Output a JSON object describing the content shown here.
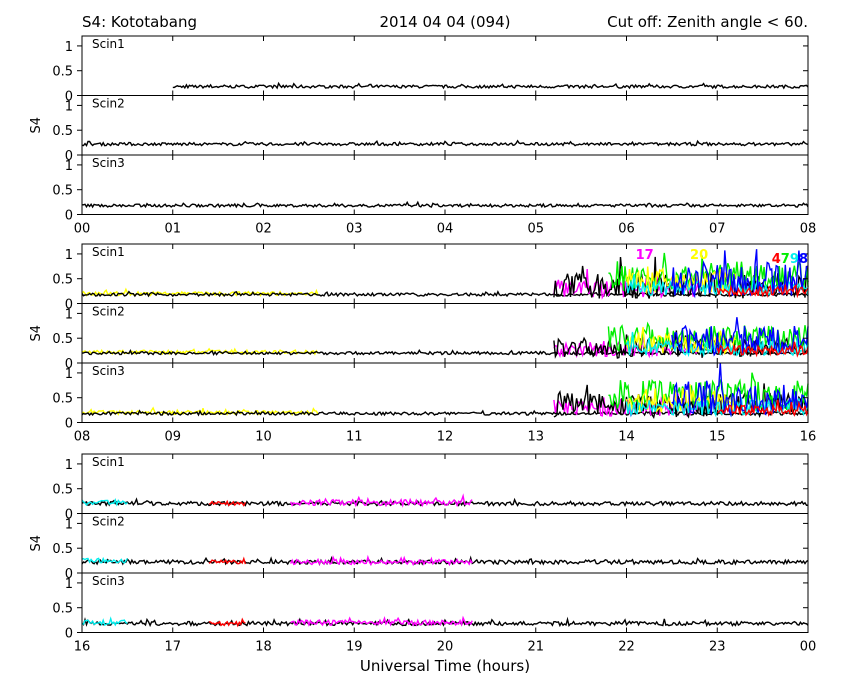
{
  "header": {
    "station": "S4: Kototabang",
    "date": "2014 04 04 (094)",
    "cutoff": "Cut off: Zenith angle < 60."
  },
  "chart_data": {
    "type": "line",
    "xlabel": "Universal Time (hours)",
    "ylabel": "S4",
    "ylim": [
      0,
      1.2
    ],
    "yticks": [
      "0",
      "0.5",
      "1"
    ],
    "panel_labels": [
      "Scin1",
      "Scin2",
      "Scin3"
    ],
    "colors": {
      "black": "#000000",
      "red": "#ff0000",
      "yellow": "#ffff00",
      "green": "#00ee00",
      "cyan": "#00eeee",
      "blue": "#0000ff",
      "magenta": "#ff00ff"
    },
    "rows": [
      {
        "x_range": [
          0,
          8
        ],
        "x_ticks": [
          "00",
          "01",
          "02",
          "03",
          "04",
          "05",
          "06",
          "07",
          "08"
        ],
        "sat_labels": [],
        "panels": [
          {
            "label": "Scin1",
            "series": [
              {
                "color": "black",
                "start": 1.0,
                "end": 8.0,
                "base": 0.18,
                "amp": 0.03
              }
            ]
          },
          {
            "label": "Scin2",
            "series": [
              {
                "color": "black",
                "start": 0.0,
                "end": 8.0,
                "base": 0.22,
                "amp": 0.03
              }
            ]
          },
          {
            "label": "Scin3",
            "series": [
              {
                "color": "black",
                "start": 0.0,
                "end": 8.0,
                "base": 0.18,
                "amp": 0.03
              }
            ]
          }
        ]
      },
      {
        "x_range": [
          8,
          16
        ],
        "x_ticks": [
          "08",
          "09",
          "10",
          "11",
          "12",
          "13",
          "14",
          "15",
          "16"
        ],
        "sat_labels": [
          {
            "text": "17",
            "color": "magenta",
            "x": 14.2,
            "y": 0.9
          },
          {
            "text": "20",
            "color": "yellow",
            "x": 14.8,
            "y": 0.9
          },
          {
            "text": "4",
            "color": "red",
            "x": 15.65,
            "y": 0.82
          },
          {
            "text": "7",
            "color": "green",
            "x": 15.75,
            "y": 0.82
          },
          {
            "text": "9",
            "color": "cyan",
            "x": 15.85,
            "y": 0.82
          },
          {
            "text": "8",
            "color": "blue",
            "x": 15.95,
            "y": 0.82
          }
        ],
        "panels": [
          {
            "label": "Scin1",
            "series": [
              {
                "color": "yellow",
                "start": 8.0,
                "end": 10.6,
                "base": 0.2,
                "amp": 0.04
              },
              {
                "color": "black",
                "start": 8.0,
                "end": 16.0,
                "base": 0.18,
                "amp": 0.03
              },
              {
                "color": "magenta",
                "start": 13.2,
                "end": 14.8,
                "base": 0.3,
                "amp": 0.18
              },
              {
                "color": "black",
                "start": 13.2,
                "end": 16.0,
                "base": 0.35,
                "amp": 0.25
              },
              {
                "color": "green",
                "start": 13.8,
                "end": 16.0,
                "base": 0.55,
                "amp": 0.3
              },
              {
                "color": "yellow",
                "start": 14.0,
                "end": 15.2,
                "base": 0.45,
                "amp": 0.25
              },
              {
                "color": "cyan",
                "start": 14.0,
                "end": 16.0,
                "base": 0.3,
                "amp": 0.15
              },
              {
                "color": "blue",
                "start": 14.5,
                "end": 16.0,
                "base": 0.5,
                "amp": 0.35
              },
              {
                "color": "red",
                "start": 15.0,
                "end": 16.0,
                "base": 0.25,
                "amp": 0.1
              }
            ]
          },
          {
            "label": "Scin2",
            "series": [
              {
                "color": "yellow",
                "start": 8.0,
                "end": 10.6,
                "base": 0.22,
                "amp": 0.04
              },
              {
                "color": "black",
                "start": 8.0,
                "end": 16.0,
                "base": 0.2,
                "amp": 0.03
              },
              {
                "color": "magenta",
                "start": 13.2,
                "end": 14.8,
                "base": 0.28,
                "amp": 0.15
              },
              {
                "color": "black",
                "start": 13.2,
                "end": 16.0,
                "base": 0.3,
                "amp": 0.2
              },
              {
                "color": "green",
                "start": 13.8,
                "end": 16.0,
                "base": 0.5,
                "amp": 0.25
              },
              {
                "color": "yellow",
                "start": 14.0,
                "end": 15.2,
                "base": 0.4,
                "amp": 0.2
              },
              {
                "color": "cyan",
                "start": 14.0,
                "end": 16.0,
                "base": 0.3,
                "amp": 0.15
              },
              {
                "color": "blue",
                "start": 14.5,
                "end": 16.0,
                "base": 0.45,
                "amp": 0.3
              },
              {
                "color": "red",
                "start": 15.0,
                "end": 16.0,
                "base": 0.25,
                "amp": 0.1
              }
            ]
          },
          {
            "label": "Scin3",
            "series": [
              {
                "color": "yellow",
                "start": 8.0,
                "end": 10.6,
                "base": 0.2,
                "amp": 0.04
              },
              {
                "color": "black",
                "start": 8.0,
                "end": 16.0,
                "base": 0.18,
                "amp": 0.03
              },
              {
                "color": "magenta",
                "start": 13.2,
                "end": 14.8,
                "base": 0.3,
                "amp": 0.18
              },
              {
                "color": "black",
                "start": 13.2,
                "end": 16.0,
                "base": 0.35,
                "amp": 0.25
              },
              {
                "color": "green",
                "start": 13.8,
                "end": 16.0,
                "base": 0.55,
                "amp": 0.3
              },
              {
                "color": "yellow",
                "start": 14.0,
                "end": 15.2,
                "base": 0.45,
                "amp": 0.25
              },
              {
                "color": "cyan",
                "start": 14.0,
                "end": 16.0,
                "base": 0.3,
                "amp": 0.15
              },
              {
                "color": "blue",
                "start": 14.5,
                "end": 16.0,
                "base": 0.5,
                "amp": 0.35
              },
              {
                "color": "red",
                "start": 15.0,
                "end": 16.0,
                "base": 0.25,
                "amp": 0.1
              }
            ]
          }
        ]
      },
      {
        "x_range": [
          16,
          24
        ],
        "x_ticks": [
          "16",
          "17",
          "18",
          "19",
          "20",
          "21",
          "22",
          "23",
          "00"
        ],
        "sat_labels": [],
        "panels": [
          {
            "label": "Scin1",
            "series": [
              {
                "color": "black",
                "start": 16.0,
                "end": 24.0,
                "base": 0.2,
                "amp": 0.04
              },
              {
                "color": "cyan",
                "start": 16.0,
                "end": 16.5,
                "base": 0.22,
                "amp": 0.05
              },
              {
                "color": "red",
                "start": 17.4,
                "end": 17.8,
                "base": 0.2,
                "amp": 0.04
              },
              {
                "color": "magenta",
                "start": 18.3,
                "end": 20.3,
                "base": 0.22,
                "amp": 0.06
              }
            ]
          },
          {
            "label": "Scin2",
            "series": [
              {
                "color": "black",
                "start": 16.0,
                "end": 24.0,
                "base": 0.22,
                "amp": 0.04
              },
              {
                "color": "cyan",
                "start": 16.0,
                "end": 16.5,
                "base": 0.25,
                "amp": 0.05
              },
              {
                "color": "red",
                "start": 17.4,
                "end": 17.8,
                "base": 0.22,
                "amp": 0.04
              },
              {
                "color": "magenta",
                "start": 18.3,
                "end": 20.3,
                "base": 0.22,
                "amp": 0.05
              }
            ]
          },
          {
            "label": "Scin3",
            "series": [
              {
                "color": "black",
                "start": 16.0,
                "end": 24.0,
                "base": 0.18,
                "amp": 0.04
              },
              {
                "color": "cyan",
                "start": 16.0,
                "end": 16.5,
                "base": 0.2,
                "amp": 0.05
              },
              {
                "color": "red",
                "start": 17.4,
                "end": 17.8,
                "base": 0.18,
                "amp": 0.04
              },
              {
                "color": "magenta",
                "start": 18.3,
                "end": 20.3,
                "base": 0.2,
                "amp": 0.05
              }
            ]
          }
        ]
      }
    ]
  }
}
